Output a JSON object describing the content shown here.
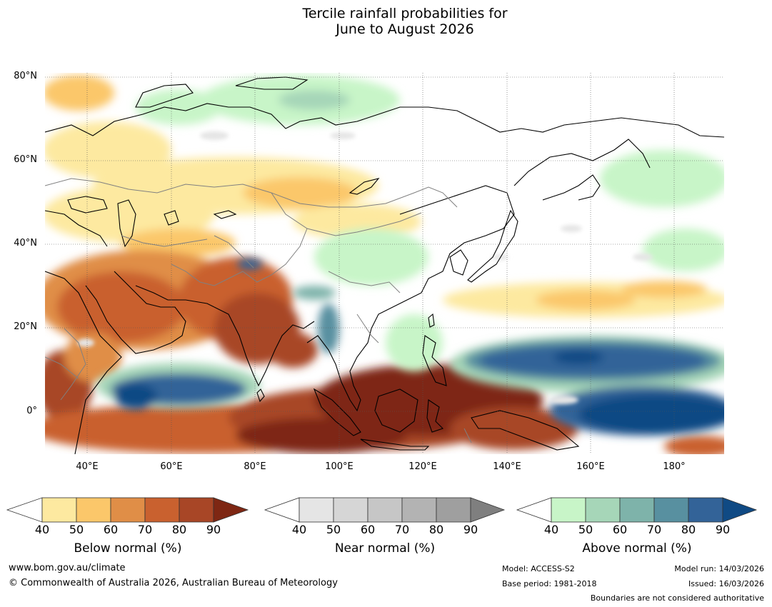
{
  "title": {
    "line1": "Tercile rainfall probabilities for",
    "line2": "June to August 2026"
  },
  "map": {
    "lat_labels": [
      "80°N",
      "60°N",
      "40°N",
      "20°N",
      "0°"
    ],
    "lon_labels": [
      "40°E",
      "60°E",
      "80°E",
      "100°E",
      "120°E",
      "140°E",
      "160°E",
      "180°"
    ],
    "colors": {
      "ocean_bg": "#ffffff",
      "coast": "#000000",
      "borders": "#808080"
    }
  },
  "colorbars": [
    {
      "name": "below",
      "title": "Below normal (%)",
      "values": [
        "40",
        "50",
        "60",
        "70",
        "80",
        "90"
      ],
      "colors": [
        "#ffffff",
        "#fde9a0",
        "#fbc76a",
        "#e08e47",
        "#c9612f",
        "#a84626",
        "#7e2713"
      ]
    },
    {
      "name": "near",
      "title": "Near normal (%)",
      "values": [
        "40",
        "50",
        "60",
        "70",
        "80",
        "90"
      ],
      "colors": [
        "#ffffff",
        "#e5e5e5",
        "#d6d6d6",
        "#c6c6c6",
        "#b3b3b3",
        "#9f9f9f",
        "#7f7f7f"
      ]
    },
    {
      "name": "above",
      "title": "Above normal (%)",
      "values": [
        "40",
        "50",
        "60",
        "70",
        "80",
        "90"
      ],
      "colors": [
        "#ffffff",
        "#c8f5c8",
        "#a6d6b8",
        "#7eb3aa",
        "#5890a0",
        "#336398",
        "#104a84"
      ]
    }
  ],
  "footer": {
    "website": "www.bom.gov.au/climate",
    "copyright": "© Commonwealth of Australia 2026, Australian Bureau of Meteorology",
    "model": "Model: ACCESS-S2",
    "base_period": "Base period: 1981-2018",
    "model_run": "Model run: 14/03/2026",
    "issued": "Issued: 16/03/2026",
    "disclaimer": "Boundaries are not considered authoritative"
  }
}
